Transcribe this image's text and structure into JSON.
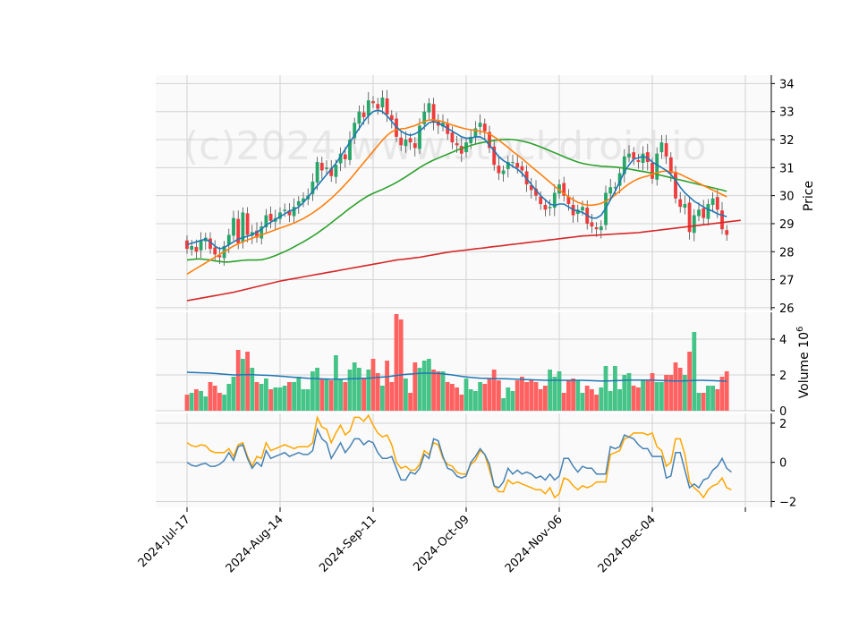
{
  "watermark": "(c)2024 www.stockdroid.io",
  "chart_data": {
    "type": "candlestick",
    "x_tick_labels": [
      "2024-Jul-17",
      "2024-Aug-14",
      "2024-Sep-11",
      "2024-Oct-09",
      "2024-Nov-06",
      "2024-Dec-04"
    ],
    "x_tick_index": [
      0,
      20,
      40,
      60,
      80,
      100
    ],
    "price_panel": {
      "ylabel": "Price",
      "ylim": [
        25.9,
        34.3
      ],
      "ticks": [
        26,
        27,
        28,
        29,
        30,
        31,
        32,
        33,
        34
      ],
      "closes": [
        28.1,
        28.2,
        28.0,
        28.4,
        28.5,
        28.1,
        27.9,
        27.8,
        28.2,
        28.6,
        29.2,
        28.3,
        29.4,
        28.6,
        28.7,
        28.5,
        28.9,
        29.3,
        29.1,
        29.2,
        29.4,
        29.5,
        29.3,
        29.6,
        29.8,
        29.9,
        30.0,
        30.5,
        31.2,
        30.9,
        31.0,
        30.7,
        31.1,
        31.5,
        31.3,
        32.0,
        32.6,
        33.0,
        32.8,
        33.4,
        33.3,
        33.1,
        33.5,
        32.9,
        32.7,
        32.1,
        31.8,
        32.0,
        31.9,
        31.7,
        32.5,
        33.0,
        33.3,
        32.6,
        32.5,
        32.6,
        32.2,
        31.9,
        31.8,
        31.5,
        31.9,
        32.1,
        32.4,
        32.6,
        32.3,
        31.7,
        31.1,
        30.8,
        30.9,
        31.2,
        31.2,
        31.0,
        30.9,
        30.4,
        30.2,
        30.0,
        29.7,
        29.5,
        29.6,
        30.1,
        30.4,
        30.0,
        29.7,
        29.3,
        29.5,
        29.6,
        29.0,
        28.9,
        28.8,
        28.9,
        30.1,
        30.3,
        30.3,
        30.8,
        31.4,
        31.5,
        31.3,
        31.2,
        31.5,
        31.2,
        30.6,
        31.5,
        31.9,
        31.4,
        30.8,
        29.9,
        29.6,
        29.7,
        28.7,
        29.3,
        29.5,
        29.2,
        29.7,
        29.9,
        29.5,
        28.8,
        28.6
      ],
      "ma_short": [
        28.25,
        28.3,
        28.35,
        28.4,
        28.45,
        28.35,
        28.2,
        28.1,
        28.15,
        28.25,
        28.35,
        28.45,
        28.5,
        28.55,
        28.6,
        28.7,
        28.8,
        28.95,
        29.05,
        29.15,
        29.25,
        29.35,
        29.45,
        29.5,
        29.6,
        29.75,
        29.95,
        30.15,
        30.35,
        30.55,
        30.75,
        30.95,
        31.15,
        31.4,
        31.65,
        31.9,
        32.15,
        32.4,
        32.65,
        32.85,
        33.0,
        33.05,
        33.0,
        32.85,
        32.65,
        32.45,
        32.3,
        32.2,
        32.15,
        32.2,
        32.3,
        32.45,
        32.6,
        32.65,
        32.6,
        32.5,
        32.4,
        32.3,
        32.2,
        32.1,
        32.05,
        32.05,
        32.1,
        32.1,
        32.0,
        31.8,
        31.6,
        31.4,
        31.25,
        31.15,
        31.05,
        30.95,
        30.8,
        30.6,
        30.4,
        30.2,
        30.0,
        29.85,
        29.7,
        29.65,
        29.7,
        29.7,
        29.6,
        29.5,
        29.45,
        29.4,
        29.3,
        29.2,
        29.2,
        29.3,
        29.55,
        29.85,
        30.15,
        30.5,
        30.85,
        31.1,
        31.3,
        31.35,
        31.4,
        31.35,
        31.2,
        31.1,
        31.0,
        30.9,
        30.75,
        30.55,
        30.3,
        30.1,
        29.95,
        29.8,
        29.7,
        29.6,
        29.5,
        29.45,
        29.35,
        29.3,
        29.25
      ],
      "ma_mid": [
        27.2,
        27.3,
        27.4,
        27.5,
        27.6,
        27.7,
        27.8,
        27.9,
        28.0,
        28.1,
        28.2,
        28.28,
        28.35,
        28.42,
        28.48,
        28.54,
        28.6,
        28.66,
        28.72,
        28.78,
        28.84,
        28.9,
        28.96,
        29.02,
        29.1,
        29.18,
        29.28,
        29.38,
        29.5,
        29.62,
        29.76,
        29.9,
        30.06,
        30.22,
        30.4,
        30.58,
        30.78,
        30.98,
        31.18,
        31.38,
        31.58,
        31.78,
        31.98,
        32.15,
        32.28,
        32.35,
        32.38,
        32.4,
        32.45,
        32.5,
        32.58,
        32.65,
        32.7,
        32.7,
        32.68,
        32.64,
        32.58,
        32.52,
        32.47,
        32.42,
        32.38,
        32.35,
        32.33,
        32.3,
        32.26,
        32.2,
        32.1,
        31.98,
        31.85,
        31.72,
        31.58,
        31.45,
        31.32,
        31.18,
        31.04,
        30.9,
        30.76,
        30.62,
        30.48,
        30.34,
        30.2,
        30.08,
        29.96,
        29.85,
        29.76,
        29.7,
        29.66,
        29.66,
        29.68,
        29.72,
        29.8,
        29.9,
        30.02,
        30.16,
        30.3,
        30.42,
        30.52,
        30.6,
        30.66,
        30.7,
        30.76,
        30.82,
        30.86,
        30.88,
        30.86,
        30.82,
        30.76,
        30.68,
        30.6,
        30.52,
        30.44,
        30.36,
        30.28,
        30.2,
        30.12,
        30.04,
        29.96
      ],
      "ma_long": [
        27.7,
        27.72,
        27.74,
        27.74,
        27.72,
        27.7,
        27.67,
        27.65,
        27.63,
        27.63,
        27.65,
        27.67,
        27.69,
        27.7,
        27.7,
        27.7,
        27.71,
        27.75,
        27.8,
        27.86,
        27.93,
        28.0,
        28.08,
        28.17,
        28.26,
        28.35,
        28.45,
        28.55,
        28.66,
        28.78,
        28.9,
        29.03,
        29.16,
        29.29,
        29.42,
        29.55,
        29.67,
        29.79,
        29.9,
        30.0,
        30.08,
        30.15,
        30.22,
        30.3,
        30.38,
        30.47,
        30.57,
        30.67,
        30.78,
        30.89,
        31.0,
        31.1,
        31.19,
        31.27,
        31.34,
        31.41,
        31.48,
        31.55,
        31.62,
        31.68,
        31.74,
        31.79,
        31.84,
        31.88,
        31.91,
        31.94,
        31.97,
        31.99,
        32.0,
        32.01,
        32.0,
        31.98,
        31.95,
        31.91,
        31.86,
        31.8,
        31.74,
        31.67,
        31.6,
        31.53,
        31.46,
        31.39,
        31.32,
        31.26,
        31.2,
        31.15,
        31.12,
        31.09,
        31.07,
        31.05,
        31.04,
        31.03,
        31.02,
        31.0,
        30.98,
        30.95,
        30.92,
        30.89,
        30.86,
        30.83,
        30.8,
        30.76,
        30.72,
        30.68,
        30.64,
        30.6,
        30.56,
        30.52,
        30.48,
        30.44,
        30.4,
        30.36,
        30.32,
        30.28,
        30.24,
        30.2,
        30.15
      ],
      "ma_trend": [
        26.25,
        26.28,
        26.31,
        26.34,
        26.37,
        26.4,
        26.43,
        26.46,
        26.49,
        26.52,
        26.55,
        26.59,
        26.63,
        26.67,
        26.71,
        26.75,
        26.79,
        26.83,
        26.87,
        26.91,
        26.95,
        26.98,
        27.01,
        27.04,
        27.07,
        27.1,
        27.13,
        27.16,
        27.19,
        27.22,
        27.25,
        27.28,
        27.31,
        27.34,
        27.37,
        27.4,
        27.43,
        27.46,
        27.49,
        27.52,
        27.55,
        27.58,
        27.61,
        27.64,
        27.67,
        27.7,
        27.72,
        27.74,
        27.76,
        27.78,
        27.8,
        27.83,
        27.86,
        27.89,
        27.92,
        27.95,
        27.98,
        28.0,
        28.02,
        28.04,
        28.06,
        28.08,
        28.1,
        28.12,
        28.14,
        28.16,
        28.18,
        28.2,
        28.22,
        28.24,
        28.26,
        28.28,
        28.3,
        28.32,
        28.34,
        28.36,
        28.38,
        28.4,
        28.42,
        28.44,
        28.46,
        28.48,
        28.5,
        28.52,
        28.54,
        28.56,
        28.57,
        28.58,
        28.59,
        28.6,
        28.61,
        28.62,
        28.63,
        28.64,
        28.65,
        28.66,
        28.67,
        28.68,
        28.7,
        28.72,
        28.74,
        28.76,
        28.78,
        28.8,
        28.82,
        28.84,
        28.86,
        28.88,
        28.9,
        28.92,
        28.94,
        28.96,
        28.98,
        29.0,
        29.02,
        29.04,
        29.06,
        29.08,
        29.1,
        29.12
      ],
      "up_color": "#26a669",
      "down_color": "#ef3b3b",
      "ma_colors": [
        "#1f77b4",
        "#ff7f0e",
        "#2ca02c",
        "#d62728"
      ]
    },
    "volume_panel": {
      "ylabel": "Volume",
      "unit_label": "10",
      "unit_exponent": "6",
      "ylim": [
        0,
        5.5
      ],
      "ticks": [
        0,
        2,
        4
      ],
      "values": [
        0.9,
        1.0,
        1.2,
        1.1,
        0.8,
        1.6,
        1.4,
        1.0,
        0.9,
        1.5,
        1.9,
        3.4,
        2.9,
        3.3,
        2.4,
        1.6,
        1.5,
        1.8,
        1.2,
        1.3,
        1.3,
        1.4,
        1.6,
        1.6,
        1.9,
        1.2,
        1.2,
        2.2,
        2.4,
        1.8,
        1.8,
        1.7,
        3.1,
        1.8,
        1.6,
        2.3,
        2.7,
        2.4,
        1.8,
        2.3,
        2.9,
        2.1,
        1.4,
        2.8,
        1.6,
        5.4,
        5.1,
        1.8,
        1.0,
        2.7,
        2.4,
        2.8,
        2.9,
        2.3,
        2.2,
        2.2,
        1.6,
        1.5,
        1.3,
        0.9,
        1.8,
        1.2,
        1.1,
        1.6,
        1.5,
        1.8,
        2.3,
        1.7,
        0.7,
        1.3,
        1.1,
        1.7,
        1.9,
        1.6,
        1.7,
        1.6,
        1.2,
        1.4,
        2.3,
        1.9,
        2.2,
        1.0,
        1.7,
        1.8,
        1.7,
        1.0,
        1.4,
        1.2,
        0.9,
        1.3,
        2.5,
        1.1,
        2.5,
        1.2,
        2.0,
        2.1,
        1.4,
        1.3,
        1.7,
        1.7,
        2.1,
        1.6,
        1.6,
        2.0,
        2.0,
        2.7,
        2.4,
        2.0,
        3.3,
        4.4,
        1.0,
        1.0,
        1.4,
        1.4,
        1.2,
        1.9,
        2.2
      ],
      "avg": [
        2.15,
        2.14,
        2.13,
        2.12,
        2.11,
        2.1,
        2.08,
        2.06,
        2.04,
        2.02,
        2.0,
        2.0,
        2.01,
        2.02,
        2.01,
        2.0,
        1.99,
        1.98,
        1.97,
        1.95,
        1.93,
        1.91,
        1.89,
        1.87,
        1.85,
        1.83,
        1.81,
        1.8,
        1.79,
        1.78,
        1.77,
        1.76,
        1.76,
        1.76,
        1.77,
        1.78,
        1.79,
        1.8,
        1.81,
        1.82,
        1.84,
        1.86,
        1.88,
        1.9,
        1.93,
        1.97,
        2.0,
        2.03,
        2.05,
        2.07,
        2.09,
        2.1,
        2.1,
        2.09,
        2.08,
        2.06,
        2.03,
        2.0,
        1.96,
        1.92,
        1.89,
        1.86,
        1.84,
        1.82,
        1.81,
        1.8,
        1.8,
        1.79,
        1.79,
        1.78,
        1.77,
        1.76,
        1.75,
        1.74,
        1.73,
        1.72,
        1.71,
        1.7,
        1.7,
        1.7,
        1.7,
        1.7,
        1.7,
        1.7,
        1.7,
        1.7,
        1.69,
        1.68,
        1.67,
        1.66,
        1.66,
        1.67,
        1.68,
        1.69,
        1.7,
        1.71,
        1.71,
        1.71,
        1.71,
        1.71,
        1.71,
        1.7,
        1.69,
        1.68,
        1.67,
        1.66,
        1.66,
        1.67,
        1.68,
        1.69,
        1.7,
        1.7,
        1.69,
        1.68,
        1.67,
        1.66,
        1.65
      ],
      "avg_color": "#1f77b4"
    },
    "oscillator_panel": {
      "ylim": [
        -2.3,
        2.5
      ],
      "ticks": [
        -2,
        0,
        2
      ],
      "line_a_color": "#4682b4",
      "line_b_color": "#ffa500",
      "line_a": [
        0.0,
        -0.15,
        -0.2,
        -0.1,
        -0.05,
        -0.2,
        -0.2,
        -0.1,
        0.1,
        0.5,
        0.1,
        0.8,
        0.9,
        0.2,
        -0.3,
        0.0,
        -0.2,
        0.6,
        0.2,
        0.3,
        0.4,
        0.5,
        0.3,
        0.4,
        0.5,
        0.4,
        0.4,
        0.6,
        1.7,
        1.2,
        1.0,
        0.2,
        0.6,
        1.0,
        0.5,
        0.8,
        1.2,
        1.2,
        0.9,
        1.1,
        1.0,
        0.5,
        0.2,
        0.2,
        0.3,
        -0.3,
        -0.9,
        -0.9,
        -0.5,
        -0.6,
        -0.3,
        0.4,
        0.2,
        1.2,
        1.1,
        0.3,
        -0.3,
        -0.4,
        -0.7,
        -0.8,
        -0.7,
        0.0,
        0.3,
        0.7,
        0.4,
        -0.1,
        -1.2,
        -1.3,
        -1.0,
        -0.3,
        -0.6,
        -0.4,
        -0.6,
        -0.5,
        -0.6,
        -0.8,
        -0.7,
        -0.9,
        -0.6,
        -0.9,
        -0.7,
        0.2,
        0.2,
        -0.2,
        -0.5,
        -0.2,
        -0.3,
        -0.3,
        -0.6,
        -0.6,
        -0.6,
        0.8,
        0.7,
        0.8,
        1.4,
        1.3,
        1.2,
        0.9,
        0.7,
        0.7,
        0.3,
        0.3,
        0.3,
        -0.8,
        -0.7,
        0.5,
        0.5,
        -0.4,
        -1.3,
        -1.1,
        -1.3,
        -0.9,
        -0.8,
        -0.4,
        -0.2,
        0.2,
        -0.3,
        -0.5
      ],
      "line_b": [
        1.0,
        0.85,
        0.8,
        0.9,
        0.85,
        0.6,
        0.5,
        0.5,
        0.5,
        0.7,
        0.3,
        0.9,
        1.0,
        0.3,
        -0.2,
        0.3,
        0.2,
        1.0,
        0.6,
        0.7,
        0.8,
        0.9,
        0.8,
        0.7,
        0.8,
        0.8,
        0.8,
        1.0,
        2.3,
        1.8,
        1.7,
        1.0,
        1.5,
        1.9,
        1.4,
        1.6,
        2.3,
        2.3,
        2.1,
        2.4,
        1.9,
        1.5,
        1.3,
        1.4,
        0.9,
        0.0,
        -0.3,
        -0.2,
        -0.4,
        -0.4,
        -0.1,
        0.6,
        0.4,
        1.0,
        0.9,
        0.2,
        -0.1,
        -0.2,
        -0.5,
        -0.6,
        -0.6,
        -0.1,
        0.1,
        0.6,
        0.4,
        -0.4,
        -1.2,
        -1.5,
        -1.5,
        -0.9,
        -1.1,
        -1.0,
        -1.1,
        -1.2,
        -1.3,
        -1.4,
        -1.4,
        -1.6,
        -1.3,
        -1.8,
        -1.6,
        -0.8,
        -0.9,
        -1.2,
        -1.4,
        -1.2,
        -1.3,
        -1.2,
        -1.0,
        -1.0,
        -1.0,
        0.4,
        0.5,
        0.6,
        1.2,
        1.3,
        1.5,
        1.5,
        1.5,
        1.4,
        1.5,
        0.8,
        0.6,
        -0.2,
        0.0,
        1.2,
        1.2,
        0.4,
        -1.0,
        -1.3,
        -1.5,
        -1.8,
        -1.4,
        -1.2,
        -1.1,
        -0.8,
        -1.3,
        -1.4
      ]
    }
  }
}
